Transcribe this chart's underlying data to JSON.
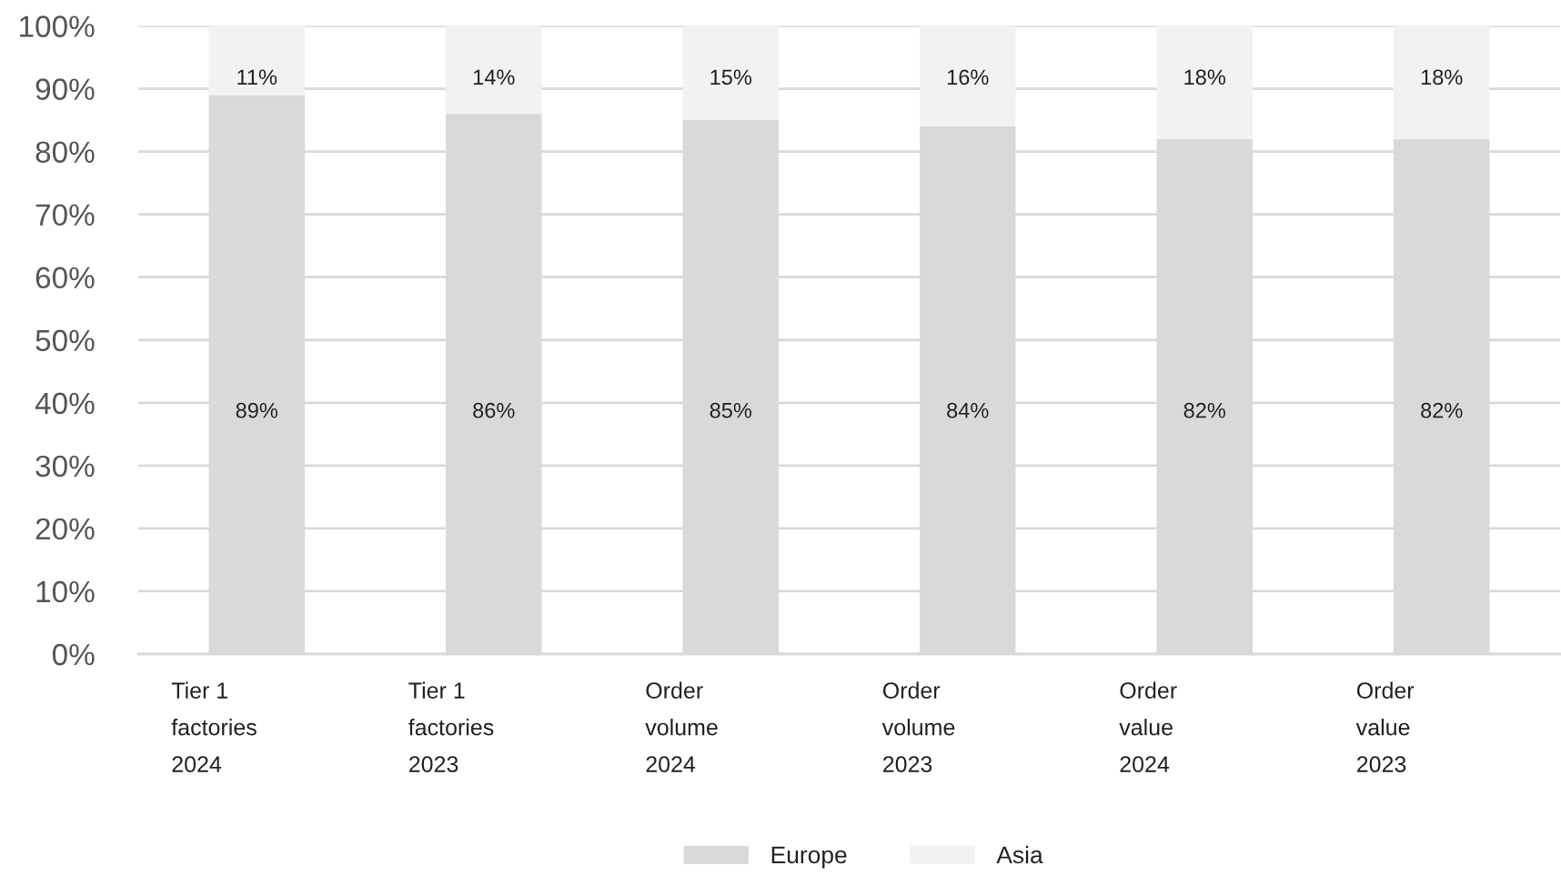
{
  "chart_data": {
    "type": "bar",
    "stacked": true,
    "categories": [
      "Tier 1\nfactories\n2024",
      "Tier 1\nfactories\n2023",
      "Order\nvolume\n2024",
      "Order\nvolume\n2023",
      "Order\nvalue\n2024",
      "Order\nvalue\n2023"
    ],
    "series": [
      {
        "name": "Europe",
        "color": "#d9d9d9",
        "values": [
          89,
          86,
          85,
          84,
          82,
          82
        ]
      },
      {
        "name": "Asia",
        "color": "#f1f2f4",
        "values": [
          11,
          14,
          15,
          16,
          18,
          18
        ]
      }
    ],
    "ylim": [
      0,
      100
    ],
    "yticks": [
      {
        "value": 0,
        "label": "0%"
      },
      {
        "value": 10,
        "label": "10%"
      },
      {
        "value": 20,
        "label": "20%"
      },
      {
        "value": 30,
        "label": "30%"
      },
      {
        "value": 40,
        "label": "40%"
      },
      {
        "value": 50,
        "label": "50%"
      },
      {
        "value": 60,
        "label": "60%"
      },
      {
        "value": 70,
        "label": "70%"
      },
      {
        "value": 80,
        "label": "80%"
      },
      {
        "value": 90,
        "label": "90%"
      },
      {
        "value": 100,
        "label": "100%"
      }
    ],
    "grid": "y",
    "legend": "bottom",
    "value_labels": [
      [
        "89%",
        "86%",
        "85%",
        "84%",
        "82%",
        "82%"
      ],
      [
        "11%",
        "14%",
        "15%",
        "16%",
        "18%",
        "18%"
      ]
    ]
  }
}
